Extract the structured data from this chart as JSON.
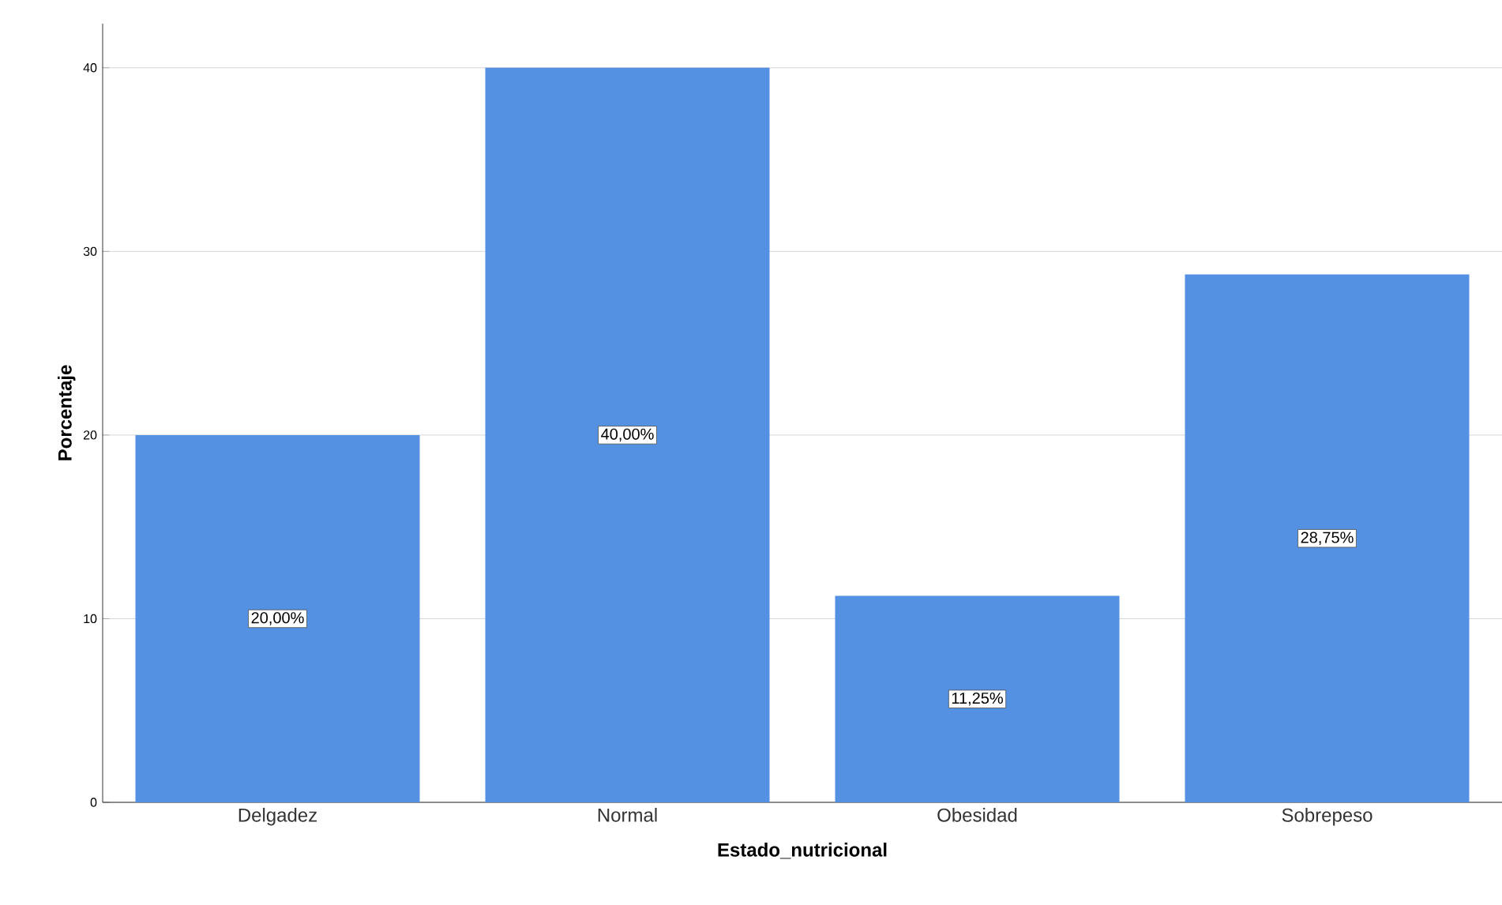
{
  "chart_data": {
    "type": "bar",
    "xlabel": "Estado_nutricional",
    "ylabel": "Porcentaje",
    "categories": [
      "Delgadez",
      "Normal",
      "Obesidad",
      "Sobrepeso"
    ],
    "values": [
      20,
      40,
      11.25,
      28.75
    ],
    "value_labels": [
      "20,00%",
      "40,00%",
      "11,25%",
      "28,75%"
    ],
    "color": "#5591e3",
    "ylim": [
      0,
      42.4
    ],
    "yticks": [
      0,
      10,
      20,
      30,
      40
    ],
    "grid": "y"
  }
}
